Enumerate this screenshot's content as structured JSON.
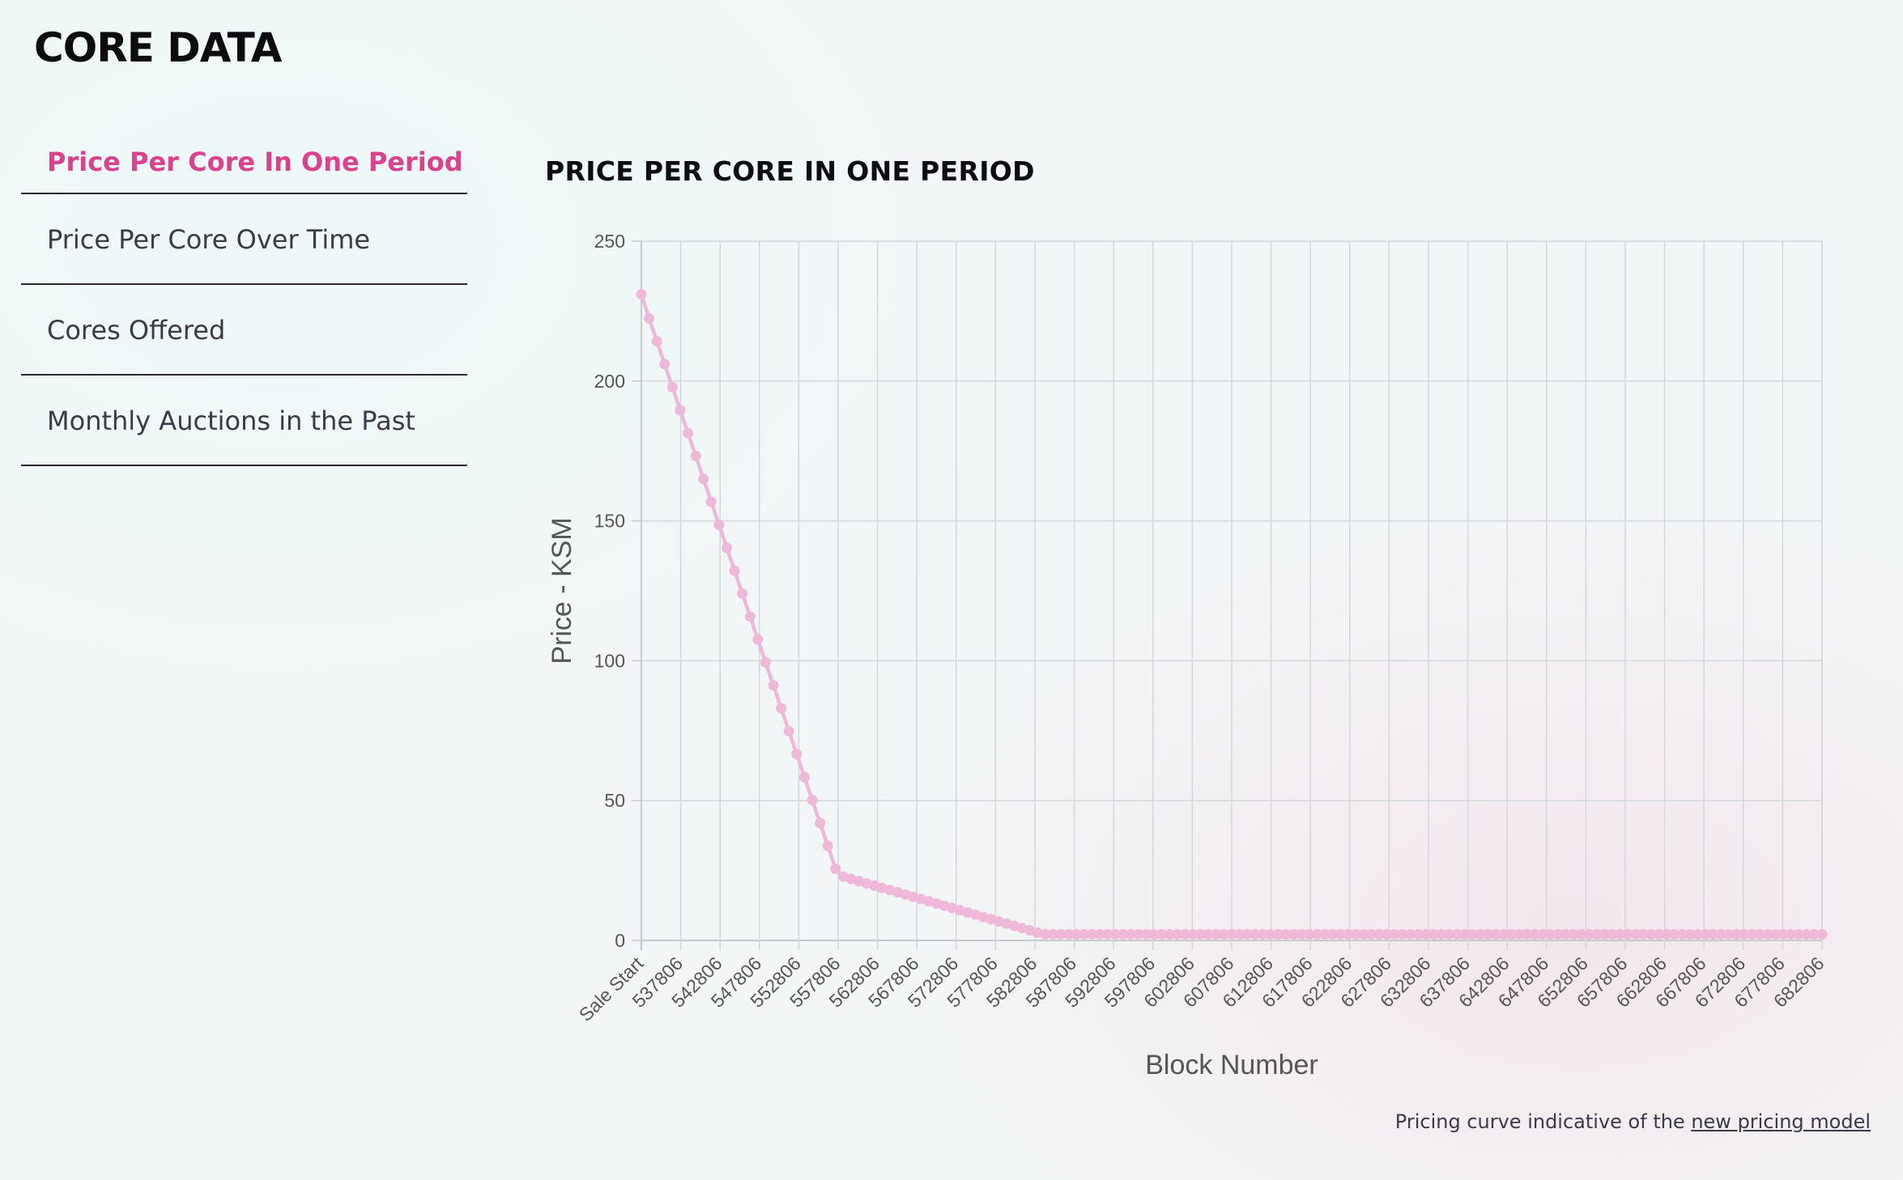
{
  "app": {
    "logo": "CORE DATA"
  },
  "nav": {
    "items": [
      {
        "label": "Price Per Core In One Period",
        "active": true
      },
      {
        "label": "Price Per Core Over Time",
        "active": false
      },
      {
        "label": "Cores Offered",
        "active": false
      },
      {
        "label": "Monthly Auctions in the Past",
        "active": false
      }
    ]
  },
  "chart_title": "PRICE PER CORE IN ONE PERIOD",
  "footer": {
    "text": "Pricing curve indicative of the ",
    "link": "new pricing model"
  },
  "chart_data": {
    "type": "line",
    "title": "PRICE PER CORE IN ONE PERIOD",
    "xlabel": "Block Number",
    "ylabel": "Price - KSM",
    "ylim": [
      0,
      250
    ],
    "yticks": [
      0,
      50,
      100,
      150,
      200,
      250
    ],
    "grid": true,
    "line_color": "#f0b8d8",
    "x_tick_labels": [
      "Sale Start",
      "537806",
      "542806",
      "547806",
      "552806",
      "557806",
      "562806",
      "567806",
      "572806",
      "577806",
      "582806",
      "587806",
      "592806",
      "597806",
      "602806",
      "607806",
      "612806",
      "617806",
      "622806",
      "627806",
      "632806",
      "637806",
      "642806",
      "647806",
      "652806",
      "657806",
      "662806",
      "667806",
      "672806",
      "677806",
      "682806"
    ],
    "x_step": 1000,
    "series": [
      {
        "values": [
          231,
          222.4,
          214.2,
          206,
          197.8,
          189.6,
          181.4,
          173.2,
          165,
          156.8,
          148.6,
          140.4,
          132.2,
          124,
          115.8,
          107.6,
          99.4,
          91.2,
          83,
          74.8,
          66.6,
          58.4,
          50.2,
          42,
          33.8,
          25.6,
          22.8,
          22,
          21.2,
          20.4,
          19.6,
          18.8,
          18,
          17.2,
          16.4,
          15.6,
          14.8,
          14,
          13.2,
          12.4,
          11.6,
          10.8,
          10,
          9.2,
          8.4,
          7.6,
          6.8,
          6,
          5.2,
          4.4,
          3.6,
          2.8,
          2.2,
          2.2,
          2.2,
          2.2,
          2.2,
          2.2,
          2.2,
          2.2,
          2.2,
          2.2,
          2.2,
          2.2,
          2.2,
          2.2,
          2.2,
          2.2,
          2.2,
          2.2,
          2.2,
          2.2,
          2.2,
          2.2,
          2.2,
          2.2,
          2.2,
          2.2,
          2.2,
          2.2,
          2.2,
          2.2,
          2.2,
          2.2,
          2.2,
          2.2,
          2.2,
          2.2,
          2.2,
          2.2,
          2.2,
          2.2,
          2.2,
          2.2,
          2.2,
          2.2,
          2.2,
          2.2,
          2.2,
          2.2,
          2.2,
          2.2,
          2.2,
          2.2,
          2.2,
          2.2,
          2.2,
          2.2,
          2.2,
          2.2,
          2.2,
          2.2,
          2.2,
          2.2,
          2.2,
          2.2,
          2.2,
          2.2,
          2.2,
          2.2,
          2.2,
          2.2,
          2.2,
          2.2,
          2.2,
          2.2,
          2.2,
          2.2,
          2.2,
          2.2,
          2.2,
          2.2,
          2.2,
          2.2,
          2.2,
          2.2,
          2.2,
          2.2,
          2.2,
          2.2,
          2.2,
          2.2,
          2.2,
          2.2,
          2.2,
          2.2,
          2.2,
          2.2,
          2.2,
          2.2,
          2.2,
          2.2,
          2.2
        ]
      }
    ]
  }
}
